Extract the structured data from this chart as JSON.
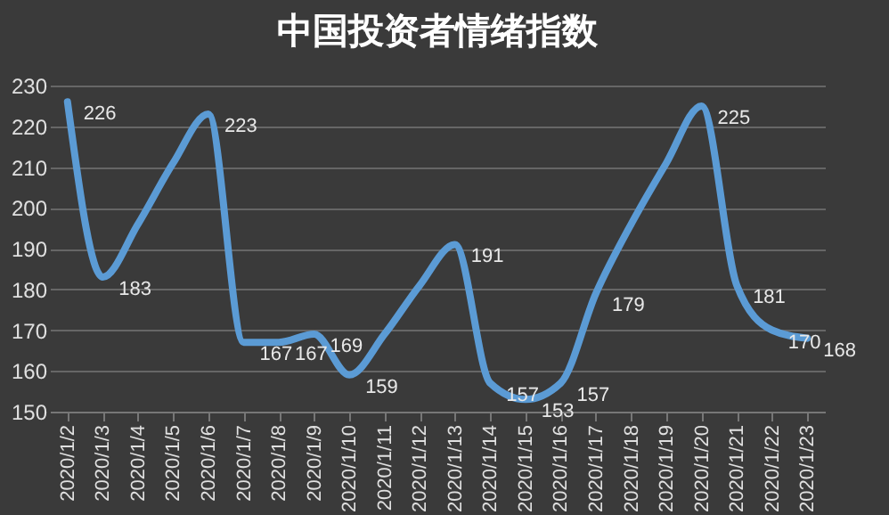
{
  "chart_data": {
    "type": "line",
    "title": "中国投资者情绪指数",
    "categories": [
      "2020/1/2",
      "2020/1/3",
      "2020/1/4",
      "2020/1/5",
      "2020/1/6",
      "2020/1/7",
      "2020/1/8",
      "2020/1/9",
      "2020/1/10",
      "2020/1/11",
      "2020/1/12",
      "2020/1/13",
      "2020/1/14",
      "2020/1/15",
      "2020/1/16",
      "2020/1/17",
      "2020/1/18",
      "2020/1/19",
      "2020/1/20",
      "2020/1/21",
      "2020/1/22",
      "2020/1/23"
    ],
    "series": [
      {
        "color": "#5b9bd5",
        "values": [
          226,
          183,
          196,
          211,
          223,
          167,
          167,
          169,
          159,
          169,
          181,
          191,
          157,
          153,
          157,
          179,
          196,
          211,
          225,
          181,
          170,
          168
        ],
        "value_labels": [
          "226",
          "183",
          null,
          null,
          "223",
          "167",
          "167",
          "169",
          "159",
          null,
          null,
          "191",
          "157",
          "153",
          "157",
          "179",
          null,
          null,
          "225",
          "181",
          "170",
          "168"
        ]
      }
    ],
    "ylim": [
      150,
      230
    ],
    "yticks": [
      150,
      160,
      170,
      180,
      190,
      200,
      210,
      220,
      230
    ],
    "grid": "y",
    "legend": false,
    "line_style": "solid",
    "marker": "none"
  }
}
